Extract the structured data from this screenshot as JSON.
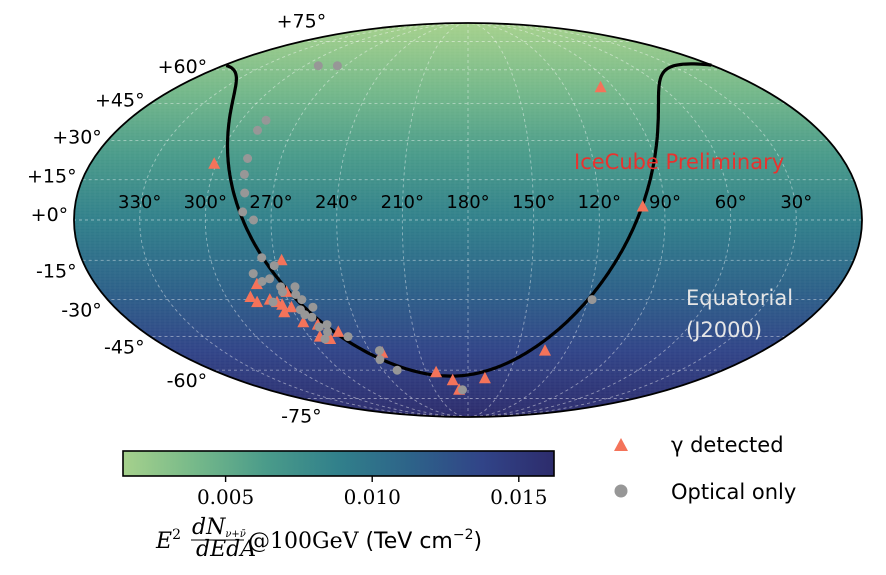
{
  "chart_data": {
    "type": "scatter",
    "projection": "mollweide",
    "title": "",
    "watermark": "IceCube Preliminary",
    "watermark_color": "#e8322e",
    "frame_label_lines": [
      "Equatorial",
      "(J2000)"
    ],
    "lon_tick_labels": [
      "330°",
      "300°",
      "270°",
      "240°",
      "210°",
      "180°",
      "150°",
      "120°",
      "90°",
      "60°",
      "30°"
    ],
    "lon_ticks": [
      330,
      300,
      270,
      240,
      210,
      180,
      150,
      120,
      90,
      60,
      30
    ],
    "lat_tick_labels": [
      "+75°",
      "+60°",
      "+45°",
      "+30°",
      "+15°",
      "+0°",
      "-15°",
      "-30°",
      "-45°",
      "-60°",
      "-75°"
    ],
    "lat_ticks": [
      75,
      60,
      45,
      30,
      15,
      0,
      -15,
      -30,
      -45,
      -60,
      -75
    ],
    "colormap": "crest",
    "colormap_stops": [
      "#a6d18c",
      "#76b98a",
      "#4a9b8a",
      "#31808b",
      "#2d6389",
      "#314488",
      "#2d2c6c"
    ],
    "colorbar": {
      "range": [
        0.0015,
        0.0162
      ],
      "tick_values": [
        0.005,
        0.01,
        0.015
      ],
      "tick_labels": [
        "0.005",
        "0.010",
        "0.015"
      ],
      "label_prefix": "E",
      "label_power": "2",
      "label_frac_num": "dN",
      "label_frac_num_sub": "ν+ν̄",
      "label_frac_den": "dEdA",
      "label_mid": "@100GeV",
      "label_units": " (TeV cm",
      "label_units_power": "−2",
      "label_close": ")"
    },
    "galactic_plane": "black curve",
    "series": [
      {
        "name": "γ detected",
        "marker": "triangle",
        "color": "#f4735a",
        "points": [
          [
            267,
            -15
          ],
          [
            269,
            -27
          ],
          [
            282,
            -24
          ],
          [
            288,
            -29
          ],
          [
            286,
            -31
          ],
          [
            270,
            -33
          ],
          [
            274,
            -32
          ],
          [
            276,
            -31
          ],
          [
            279,
            -30
          ],
          [
            275,
            -35
          ],
          [
            268,
            -39
          ],
          [
            261,
            -40
          ],
          [
            252,
            -43
          ],
          [
            264,
            -45
          ],
          [
            259,
            -46
          ],
          [
            233,
            -52
          ],
          [
            203,
            -61
          ],
          [
            192,
            -65
          ],
          [
            188,
            -70
          ],
          [
            167,
            -64
          ],
          [
            133,
            -51
          ],
          [
            98,
            52
          ],
          [
            100,
            5
          ],
          [
            301,
            21
          ]
        ]
      },
      {
        "name": "Optical only",
        "marker": "circle",
        "color": "#979797",
        "points": [
          [
            290,
            62
          ],
          [
            276,
            62
          ],
          [
            287,
            38
          ],
          [
            288,
            34
          ],
          [
            286,
            23
          ],
          [
            285,
            17
          ],
          [
            283,
            10
          ],
          [
            283,
            3
          ],
          [
            278,
            0
          ],
          [
            276,
            -14
          ],
          [
            271,
            -17
          ],
          [
            282,
            -20
          ],
          [
            275,
            -22
          ],
          [
            279,
            -23
          ],
          [
            271,
            -25
          ],
          [
            264,
            -25
          ],
          [
            271,
            -27
          ],
          [
            265,
            -28
          ],
          [
            263,
            -30
          ],
          [
            278,
            -31
          ],
          [
            259,
            -33
          ],
          [
            266,
            -34
          ],
          [
            265,
            -36
          ],
          [
            262,
            -37
          ],
          [
            256,
            -40
          ],
          [
            261,
            -41
          ],
          [
            258,
            -43
          ],
          [
            248,
            -45
          ],
          [
            262,
            -46
          ],
          [
            234,
            -51
          ],
          [
            237,
            -55
          ],
          [
            230,
            -60
          ],
          [
            185,
            -70
          ],
          [
            118,
            -30
          ]
        ]
      }
    ],
    "legend": {
      "position": "lower-right",
      "entries": [
        "γ detected",
        "Optical only"
      ]
    }
  }
}
